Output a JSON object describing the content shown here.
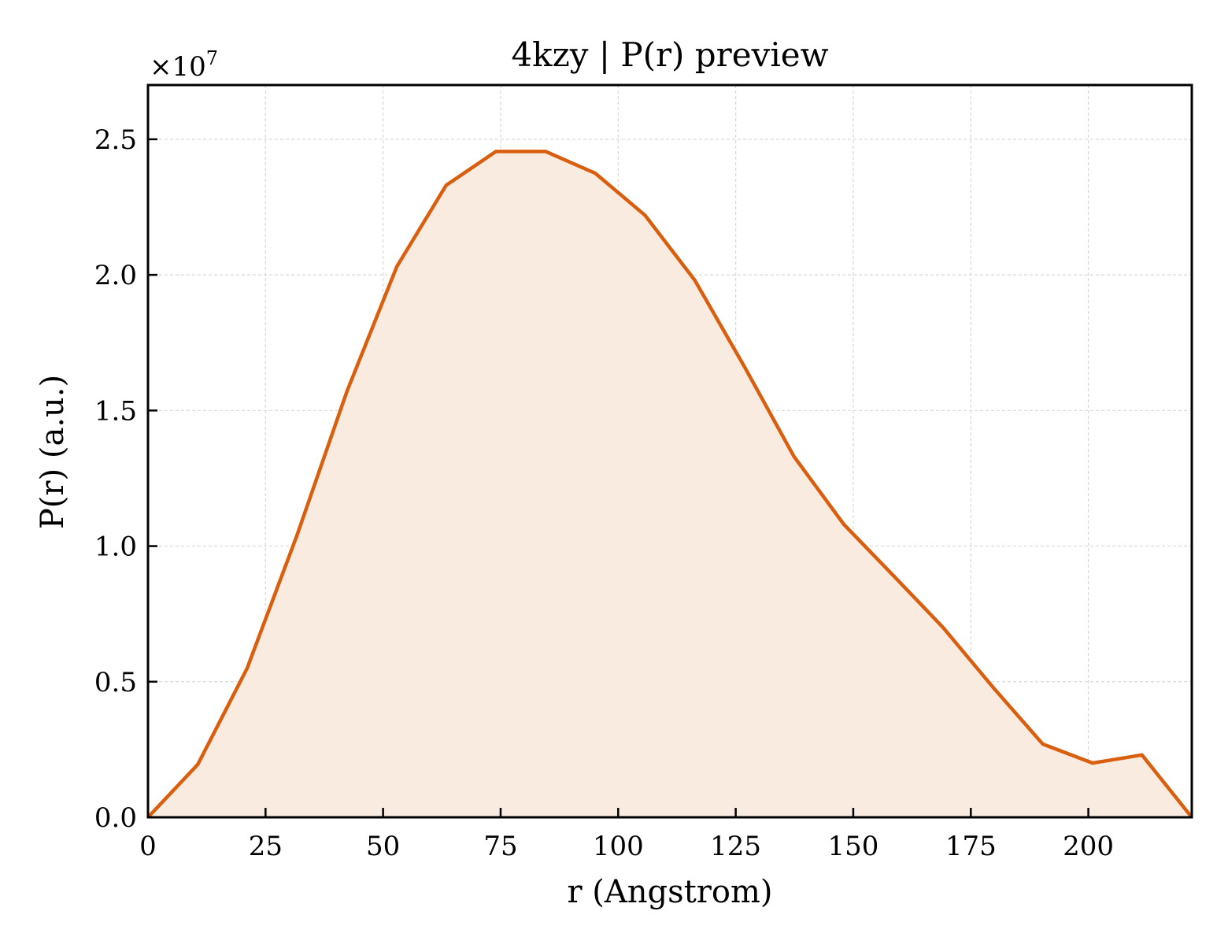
{
  "chart_data": {
    "type": "area",
    "title": "4kzy | P(r) preview",
    "xlabel": "r (Angstrom)",
    "ylabel": "P(r) (a.u.)",
    "y_multiplier": {
      "base": "×10",
      "exponent": "7"
    },
    "xlim": [
      0,
      222
    ],
    "ylim": [
      0,
      2.7
    ],
    "xticks": [
      0,
      25,
      50,
      75,
      100,
      125,
      150,
      175,
      200
    ],
    "xtick_labels": [
      "0",
      "25",
      "50",
      "75",
      "100",
      "125",
      "150",
      "175",
      "200"
    ],
    "yticks": [
      0.0,
      0.5,
      1.0,
      1.5,
      2.0,
      2.5
    ],
    "ytick_labels": [
      "0.0",
      "0.5",
      "1.0",
      "1.5",
      "2.0",
      "2.5"
    ],
    "grid": true,
    "line_color": "#d95f0e",
    "fill_color": "#f9ebe0",
    "series": [
      {
        "x": [
          0,
          10.6,
          21.1,
          31.7,
          42.3,
          52.9,
          63.4,
          74.0,
          84.6,
          95.1,
          105.7,
          116.3,
          126.9,
          137.4,
          148.0,
          158.6,
          169.1,
          179.7,
          190.3,
          200.9,
          211.4,
          222.0
        ],
        "y": [
          0.0,
          0.195,
          0.55,
          1.04,
          1.57,
          2.03,
          2.33,
          2.455,
          2.455,
          2.375,
          2.22,
          1.98,
          1.66,
          1.33,
          1.08,
          0.89,
          0.7,
          0.48,
          0.27,
          0.2,
          0.23,
          0.0
        ]
      }
    ]
  }
}
